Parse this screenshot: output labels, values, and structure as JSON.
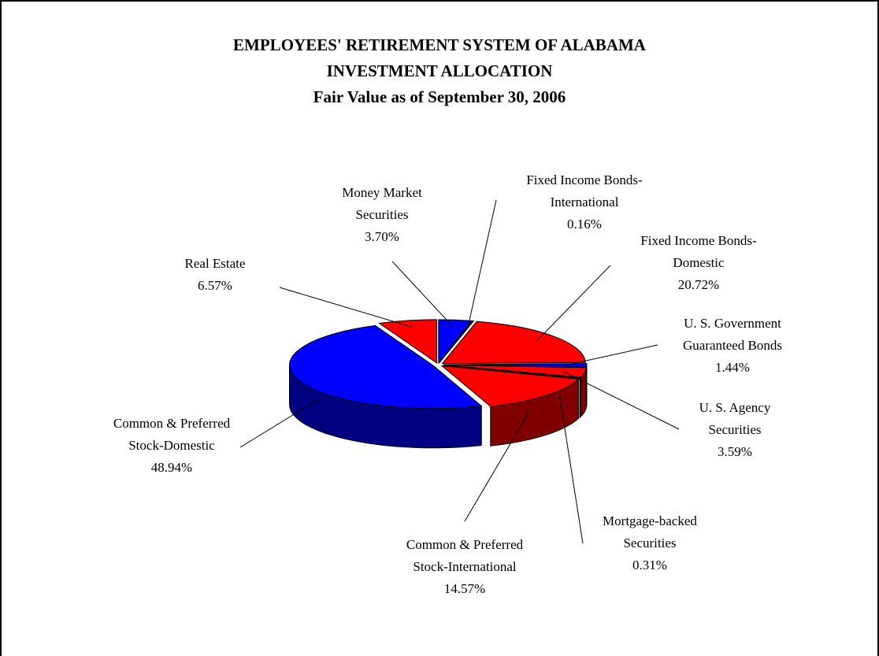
{
  "chart_data": {
    "type": "pie3d",
    "title": [
      "EMPLOYEES' RETIREMENT SYSTEM OF ALABAMA",
      "INVESTMENT  ALLOCATION",
      "Fair Value as of September 30, 2006"
    ],
    "categories": [
      [
        "Money Market",
        "Securities"
      ],
      [
        "Fixed Income Bonds-",
        "International"
      ],
      [
        "Fixed Income Bonds-",
        "Domestic"
      ],
      [
        "U. S. Government",
        "Guaranteed Bonds"
      ],
      [
        "U. S. Agency",
        "Securities"
      ],
      [
        "Mortgage-backed",
        "Securities"
      ],
      [
        "Common & Preferred",
        "Stock-International"
      ],
      [
        "Common & Preferred",
        "Stock-Domestic"
      ],
      [
        "Real Estate"
      ]
    ],
    "values": [
      3.7,
      0.16,
      20.72,
      1.44,
      3.59,
      0.31,
      14.57,
      48.94,
      6.57
    ],
    "value_labels": [
      "3.70%",
      "0.16%",
      "20.72%",
      "1.44%",
      "3.59%",
      "0.31%",
      "14.57%",
      "48.94%",
      "6.57%"
    ],
    "colors": [
      "#0000ff",
      "#ff0000",
      "#ff0000",
      "#0000ff",
      "#ff0000",
      "#0000ff",
      "#ff0000",
      "#0000ff",
      "#ff0000"
    ]
  }
}
